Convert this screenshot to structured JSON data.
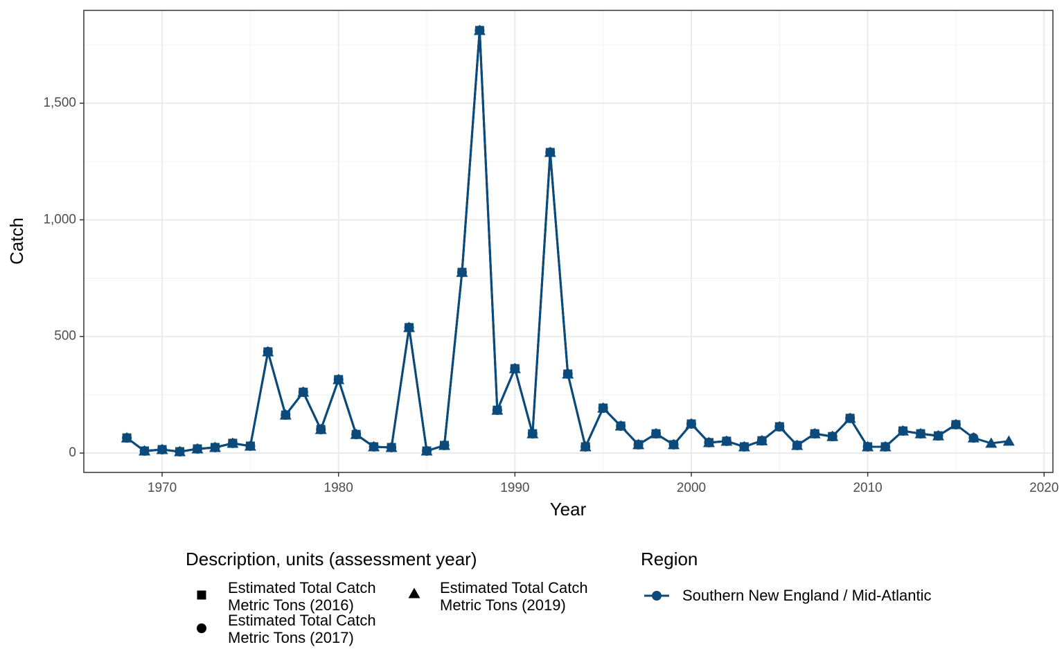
{
  "chart_data": {
    "type": "line",
    "x_label": "Year",
    "y_label": "Catch",
    "x": [
      1968,
      1969,
      1970,
      1971,
      1972,
      1973,
      1974,
      1975,
      1976,
      1977,
      1978,
      1979,
      1980,
      1981,
      1982,
      1983,
      1984,
      1985,
      1986,
      1987,
      1988,
      1989,
      1990,
      1991,
      1992,
      1993,
      1994,
      1995,
      1996,
      1997,
      1998,
      1999,
      2000,
      2001,
      2002,
      2003,
      2004,
      2005,
      2006,
      2007,
      2008,
      2009,
      2010,
      2011,
      2012,
      2013,
      2014,
      2015,
      2016,
      2017,
      2018
    ],
    "xlim": [
      1965.56,
      2020.5
    ],
    "xticks": [
      1970,
      1980,
      1990,
      2000,
      2010,
      2020
    ],
    "ylim": [
      -83,
      1898
    ],
    "yticks": [
      0,
      500,
      {
        "value": 1000,
        "label": "1,000"
      },
      {
        "value": 1500,
        "label": "1,500"
      }
    ],
    "grid": true,
    "legend_title": "Description, units (assessment year)",
    "series": [
      {
        "name": "Estimated Total Catch Metric Tons (2016)",
        "marker": "square",
        "color": "#0b4a7a",
        "values": [
          65,
          9,
          15,
          6,
          18,
          24,
          42,
          30,
          434,
          163,
          261,
          101,
          315,
          80,
          27,
          24,
          538,
          9,
          33,
          775,
          1812,
          184,
          362,
          83,
          1289,
          339,
          27,
          193,
          116,
          36,
          83,
          36,
          125,
          45,
          51,
          27,
          53,
          113,
          33,
          83,
          71,
          149,
          27,
          27,
          95,
          83,
          74,
          122,
          null,
          null,
          null
        ]
      },
      {
        "name": "Estimated Total Catch Metric Tons (2017)",
        "marker": "circle",
        "color": "#0b4a7a",
        "values": [
          65,
          9,
          15,
          6,
          18,
          24,
          42,
          30,
          434,
          163,
          261,
          101,
          315,
          80,
          27,
          24,
          538,
          9,
          33,
          775,
          1812,
          184,
          362,
          83,
          1289,
          339,
          27,
          193,
          116,
          36,
          83,
          36,
          125,
          45,
          51,
          27,
          53,
          113,
          33,
          83,
          71,
          149,
          27,
          27,
          95,
          83,
          74,
          122,
          65,
          null,
          null
        ]
      },
      {
        "name": "Estimated Total Catch Metric Tons (2019)",
        "marker": "triangle",
        "color": "#0b4a7a",
        "values": [
          65,
          9,
          15,
          6,
          18,
          24,
          42,
          30,
          434,
          163,
          261,
          101,
          315,
          80,
          27,
          24,
          538,
          9,
          33,
          775,
          1812,
          184,
          362,
          83,
          1289,
          339,
          27,
          193,
          116,
          36,
          83,
          36,
          125,
          45,
          51,
          27,
          53,
          113,
          33,
          83,
          71,
          149,
          27,
          27,
          95,
          83,
          74,
          122,
          65,
          42,
          51
        ]
      }
    ],
    "region_legend": {
      "title": "Region",
      "name": "Southern New England / Mid-Atlantic",
      "color": "#0b4a7a"
    }
  }
}
